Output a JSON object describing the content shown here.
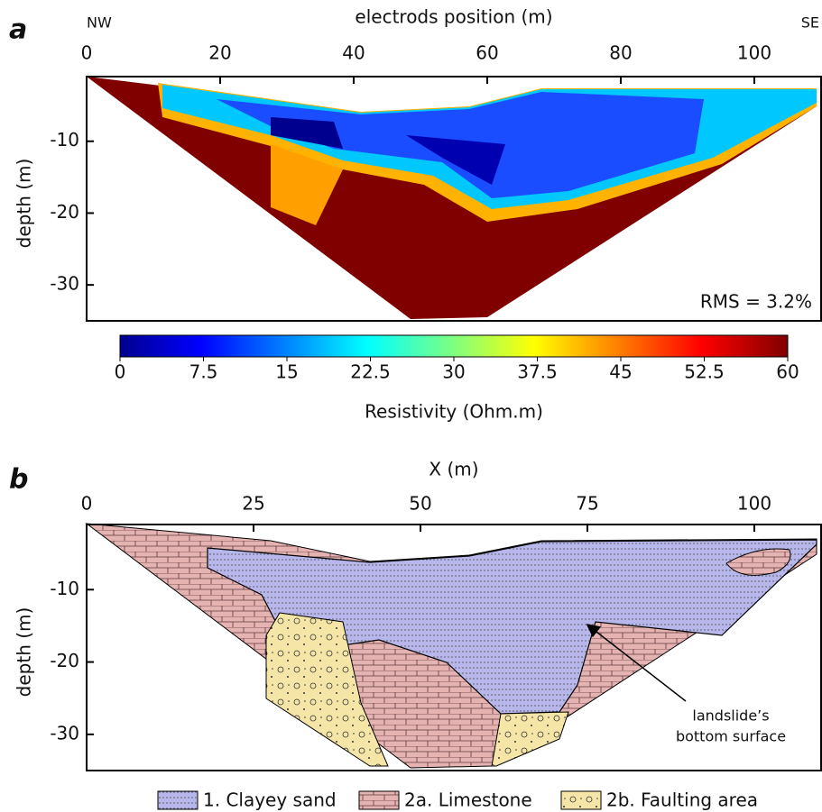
{
  "chart_data": [
    {
      "type": "heatmap",
      "panel_label": "a",
      "title": "electrods position (m)",
      "left_label": "NW",
      "right_label": "SE",
      "xlim": [
        0,
        110
      ],
      "xticks": [
        0,
        20,
        40,
        60,
        80,
        100
      ],
      "ylim": [
        -35,
        -1
      ],
      "yticks": [
        -10,
        -20,
        -30
      ],
      "ylabel": "depth (m)",
      "annotation": "RMS = 3.2%",
      "colorbar": {
        "lim": [
          0,
          60
        ],
        "ticks": [
          0,
          7.5,
          15,
          22.5,
          30,
          37.5,
          45,
          52.5,
          60
        ],
        "label": "Resistivity (Ohm.m)"
      }
    },
    {
      "type": "section",
      "panel_label": "b",
      "title": "X (m)",
      "xlim": [
        0,
        110
      ],
      "xticks": [
        0,
        25,
        50,
        75,
        100
      ],
      "ylim": [
        -35,
        -1
      ],
      "yticks": [
        -10,
        -20,
        -30
      ],
      "ylabel": "depth (m)",
      "annotation": [
        "landslide’s",
        "bottom surface"
      ],
      "legend": [
        "1. Clayey sand",
        "2a. Limestone",
        "2b. Faulting area"
      ]
    }
  ]
}
